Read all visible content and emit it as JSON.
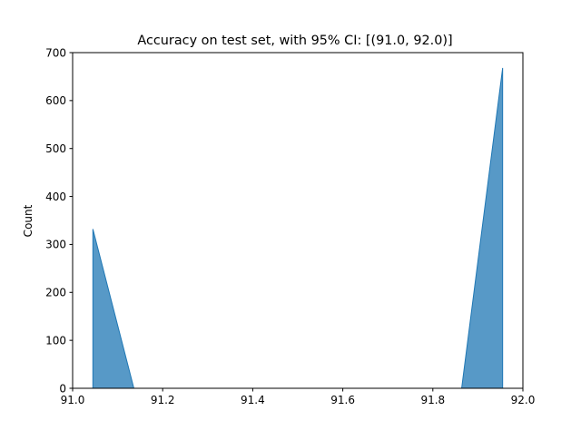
{
  "chart_data": {
    "type": "area",
    "title": "Accuracy on test set, with 95% CI: [(91.0, 92.0)]",
    "xlabel": "",
    "ylabel": "Count",
    "xlim": [
      91.0,
      92.0
    ],
    "ylim": [
      0,
      700
    ],
    "x_ticks": [
      "91.0",
      "91.2",
      "91.4",
      "91.6",
      "91.8",
      "92.0"
    ],
    "y_ticks": [
      "0",
      "100",
      "200",
      "300",
      "400",
      "500",
      "600",
      "700"
    ],
    "grid": false,
    "legend": "none",
    "fill_color": "#1f77b4",
    "series": [
      {
        "points": [
          {
            "x": 91.045,
            "y": 0
          },
          {
            "x": 91.045,
            "y": 332
          },
          {
            "x": 91.136,
            "y": 0
          },
          {
            "x": 91.864,
            "y": 0
          },
          {
            "x": 91.955,
            "y": 668
          },
          {
            "x": 91.955,
            "y": 0
          }
        ]
      }
    ]
  }
}
